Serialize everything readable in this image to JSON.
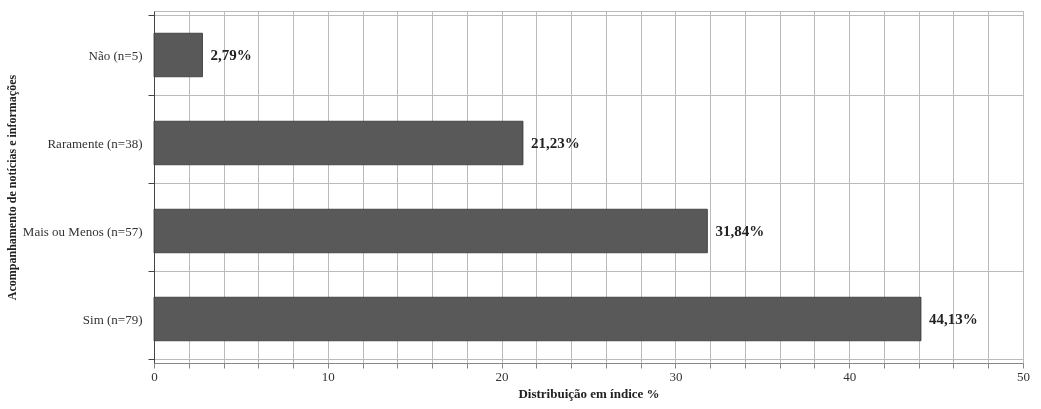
{
  "chart_data": {
    "type": "bar",
    "orientation": "horizontal",
    "categories": [
      "Não (n=5)",
      "Raramente (n=38)",
      "Mais ou Menos (n=57)",
      "Sim (n=79)"
    ],
    "values": [
      2.79,
      21.23,
      31.84,
      44.13
    ],
    "color": "#595959",
    "value_labels": [
      "2,79%",
      "21,23%",
      "31,84%",
      "44,13%"
    ],
    "xlim": [
      0,
      50
    ],
    "xticks": [
      0,
      {
        "value": 2,
        "label": null
      },
      {
        "value": 4,
        "label": null
      },
      {
        "value": 6,
        "label": null
      },
      {
        "value": 8,
        "label": null
      },
      10,
      {
        "value": 12,
        "label": null
      },
      {
        "value": 14,
        "label": null
      },
      {
        "value": 16,
        "label": null
      },
      {
        "value": 18,
        "label": null
      },
      20,
      {
        "value": 22,
        "label": null
      },
      {
        "value": 24,
        "label": null
      },
      {
        "value": 26,
        "label": null
      },
      {
        "value": 28,
        "label": null
      },
      30,
      {
        "value": 32,
        "label": null
      },
      {
        "value": 34,
        "label": null
      },
      {
        "value": 36,
        "label": null
      },
      {
        "value": 38,
        "label": null
      },
      40,
      {
        "value": 42,
        "label": null
      },
      {
        "value": 44,
        "label": null
      },
      {
        "value": 46,
        "label": null
      },
      {
        "value": 48,
        "label": null
      },
      50
    ],
    "xlabel": "Distribuição em índice %",
    "ylabel": "Acompanhamento de notícias e informações",
    "grid": true
  }
}
